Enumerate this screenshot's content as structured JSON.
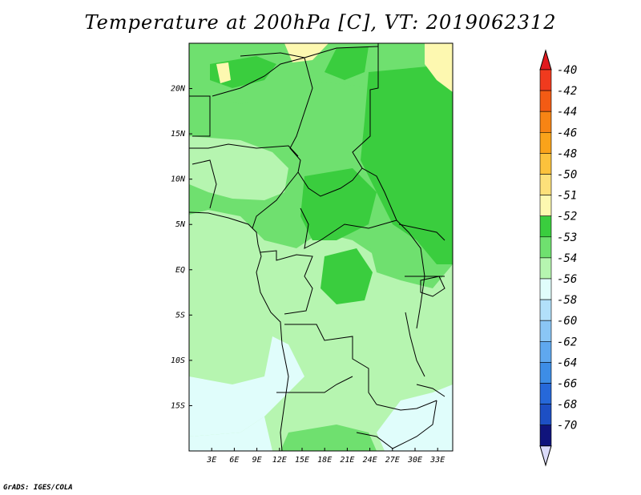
{
  "title": "Temperature at 200hPa [C], VT: 2019062312",
  "footer": "GrADS: IGES/COLA",
  "map": {
    "lon_range": [
      0,
      35
    ],
    "lat_range": [
      -20,
      25
    ],
    "lat_ticks": [
      {
        "value": 20,
        "label": "20N"
      },
      {
        "value": 15,
        "label": "15N"
      },
      {
        "value": 10,
        "label": "10N"
      },
      {
        "value": 5,
        "label": "5N"
      },
      {
        "value": 0,
        "label": "EQ"
      },
      {
        "value": -5,
        "label": "5S"
      },
      {
        "value": -10,
        "label": "10S"
      },
      {
        "value": -15,
        "label": "15S"
      }
    ],
    "lon_ticks": [
      {
        "value": 3,
        "label": "3E"
      },
      {
        "value": 6,
        "label": "6E"
      },
      {
        "value": 9,
        "label": "9E"
      },
      {
        "value": 12,
        "label": "12E"
      },
      {
        "value": 15,
        "label": "15E"
      },
      {
        "value": 18,
        "label": "18E"
      },
      {
        "value": 21,
        "label": "21E"
      },
      {
        "value": 24,
        "label": "24E"
      },
      {
        "value": 27,
        "label": "27E"
      },
      {
        "value": 30,
        "label": "30E"
      },
      {
        "value": 33,
        "label": "33E"
      }
    ]
  },
  "colorbar": {
    "bins": [
      {
        "label": "-40",
        "color": "#f03a1e"
      },
      {
        "label": "-42",
        "color": "#f35b14"
      },
      {
        "label": "-44",
        "color": "#f78414"
      },
      {
        "label": "-46",
        "color": "#faa31a"
      },
      {
        "label": "-48",
        "color": "#fcc23c"
      },
      {
        "label": "-50",
        "color": "#fde07a"
      },
      {
        "label": "-51",
        "color": "#fdf8b0"
      },
      {
        "label": "-52",
        "color": "#3acd3e"
      },
      {
        "label": "-53",
        "color": "#6fe06f"
      },
      {
        "label": "-54",
        "color": "#b6f5b0"
      },
      {
        "label": "-56",
        "color": "#e0fdfb"
      },
      {
        "label": "-58",
        "color": "#b2e0fa"
      },
      {
        "label": "-60",
        "color": "#8ac6f5"
      },
      {
        "label": "-62",
        "color": "#5fa8ef"
      },
      {
        "label": "-64",
        "color": "#3d8de6"
      },
      {
        "label": "-66",
        "color": "#2668d9"
      },
      {
        "label": "-68",
        "color": "#1d4fc4"
      },
      {
        "label": "-70",
        "color": "#10147c"
      }
    ],
    "over_color": "#e1191e",
    "under_color": "#dcdcfa"
  }
}
